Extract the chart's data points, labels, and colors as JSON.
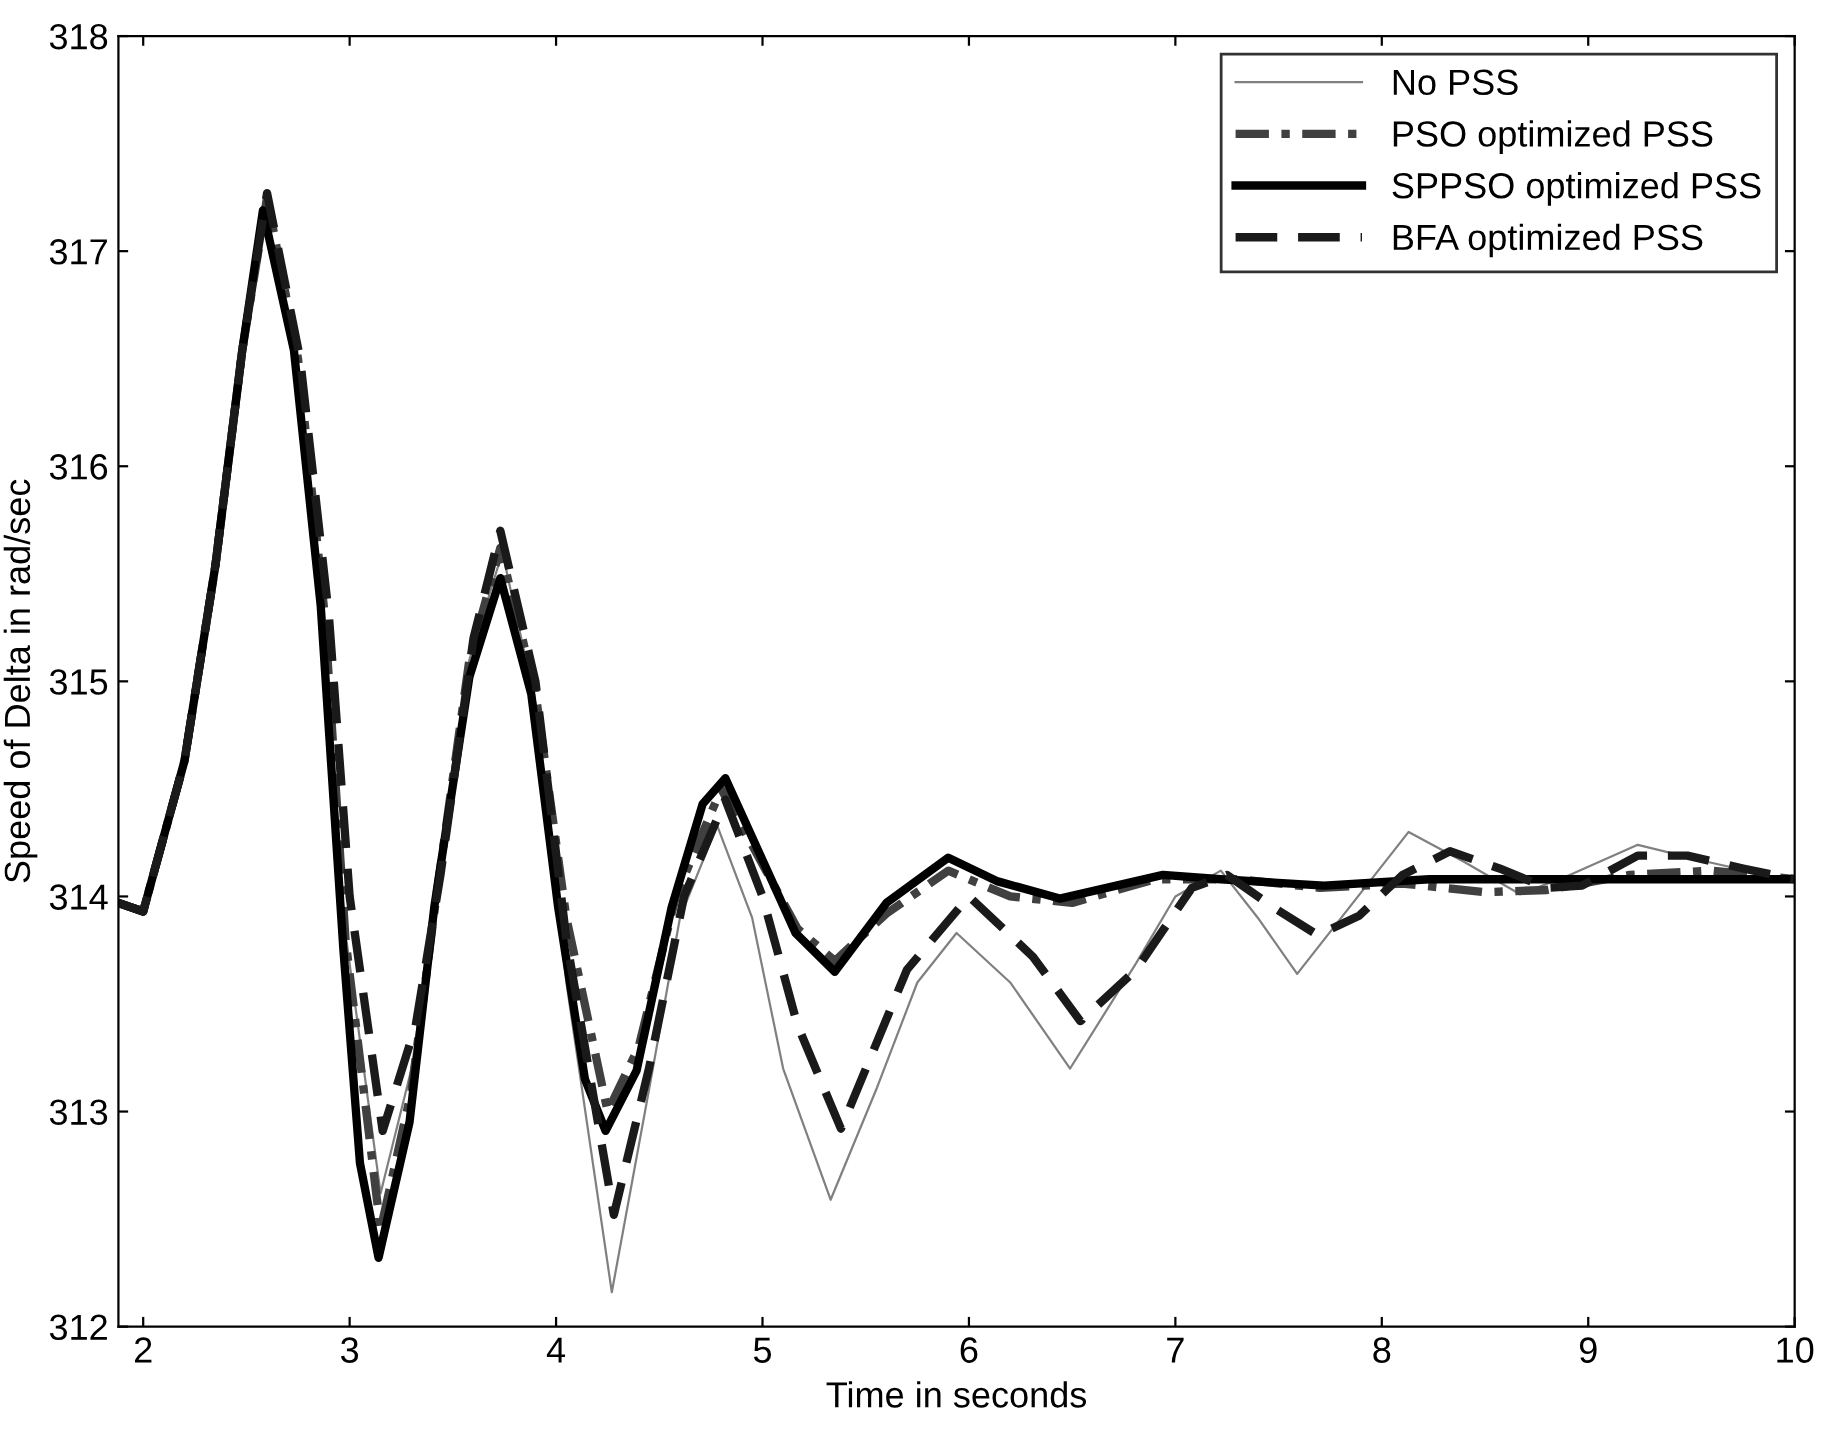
{
  "chart_data": {
    "type": "line",
    "xlabel": "Time in seconds",
    "ylabel": "Speed of Delta in rad/sec",
    "xlim": [
      1.88,
      10
    ],
    "ylim": [
      312,
      318
    ],
    "xticks": [
      2,
      3,
      4,
      5,
      6,
      7,
      8,
      9,
      10
    ],
    "yticks": [
      312,
      313,
      314,
      315,
      316,
      317,
      318
    ],
    "grid": false,
    "legend": "top right",
    "series": [
      {
        "name": "No PSS",
        "color": "#808080",
        "line_style": "solid",
        "x": [
          1.88,
          2.0,
          2.2,
          2.35,
          2.48,
          2.58,
          2.73,
          2.86,
          2.97,
          3.15,
          3.3,
          3.42,
          3.58,
          3.74,
          3.9,
          4.05,
          4.27,
          4.45,
          4.6,
          4.78,
          4.95,
          5.1,
          5.33,
          5.55,
          5.75,
          5.94,
          6.2,
          6.49,
          6.81,
          7.0,
          7.22,
          7.4,
          7.59,
          7.86,
          8.13,
          8.4,
          8.67,
          8.91,
          9.24,
          9.58,
          10
        ],
        "values": [
          313.97,
          313.93,
          314.63,
          315.54,
          316.54,
          317.2,
          316.6,
          315.4,
          313.9,
          312.62,
          313.2,
          314.0,
          315.1,
          315.6,
          314.9,
          313.6,
          312.16,
          313.1,
          313.9,
          314.33,
          313.9,
          313.2,
          312.59,
          313.1,
          313.6,
          313.83,
          313.6,
          313.2,
          313.69,
          314.0,
          314.12,
          313.9,
          313.64,
          313.97,
          314.3,
          314.16,
          314.01,
          314.1,
          314.24,
          314.16,
          314.07
        ]
      },
      {
        "name": "PSO optimized PSS",
        "color": "#404040",
        "line_style": "dashdot",
        "x": [
          1.88,
          2.0,
          2.2,
          2.35,
          2.48,
          2.6,
          2.75,
          2.88,
          2.98,
          3.15,
          3.3,
          3.42,
          3.58,
          3.73,
          3.9,
          4.05,
          4.25,
          4.4,
          4.58,
          4.8,
          5.0,
          5.17,
          5.35,
          5.6,
          5.9,
          6.2,
          6.5,
          6.9,
          7.3,
          7.7,
          8.1,
          8.5,
          8.8,
          9.2,
          9.6,
          10
        ],
        "values": [
          313.97,
          313.93,
          314.63,
          315.54,
          316.54,
          317.25,
          316.5,
          315.3,
          313.8,
          312.45,
          313.1,
          314.0,
          315.1,
          315.62,
          314.95,
          313.9,
          313.0,
          313.3,
          314.0,
          314.5,
          314.15,
          313.85,
          313.7,
          313.92,
          314.12,
          314.0,
          313.97,
          314.08,
          314.08,
          314.04,
          314.06,
          314.02,
          314.03,
          314.1,
          314.12,
          314.08
        ]
      },
      {
        "name": "SPPSO optimized PSS",
        "color": "#000000",
        "line_style": "solid",
        "x": [
          1.88,
          2.0,
          2.2,
          2.35,
          2.48,
          2.58,
          2.73,
          2.86,
          2.97,
          3.05,
          3.14,
          3.29,
          3.41,
          3.58,
          3.73,
          3.88,
          4.01,
          4.14,
          4.24,
          4.39,
          4.56,
          4.71,
          4.82,
          4.99,
          5.16,
          5.35,
          5.6,
          5.9,
          6.14,
          6.44,
          6.94,
          7.22,
          7.72,
          8.23,
          10
        ],
        "values": [
          313.97,
          313.93,
          314.63,
          315.54,
          316.54,
          317.19,
          316.54,
          315.35,
          313.75,
          312.76,
          312.32,
          312.95,
          313.95,
          315.02,
          315.48,
          314.94,
          313.95,
          313.15,
          312.91,
          313.19,
          313.95,
          314.43,
          314.55,
          314.19,
          313.83,
          313.65,
          313.97,
          314.18,
          314.07,
          313.99,
          314.1,
          314.08,
          314.05,
          314.08,
          314.08
        ]
      },
      {
        "name": "BFA optimized PSS",
        "color": "#1a1a1a",
        "line_style": "dashed",
        "x": [
          1.88,
          2.0,
          2.2,
          2.35,
          2.48,
          2.6,
          2.76,
          2.9,
          3.0,
          3.16,
          3.32,
          3.44,
          3.6,
          3.73,
          3.9,
          4.05,
          4.28,
          4.45,
          4.62,
          4.82,
          5.0,
          5.17,
          5.38,
          5.7,
          6.0,
          6.31,
          6.54,
          6.81,
          7.08,
          7.25,
          7.49,
          7.69,
          7.89,
          8.1,
          8.33,
          8.57,
          8.8,
          8.97,
          9.24,
          9.48,
          9.75,
          10
        ],
        "values": [
          313.97,
          313.93,
          314.63,
          315.54,
          316.54,
          317.27,
          316.5,
          315.3,
          314.0,
          312.91,
          313.4,
          314.1,
          315.2,
          315.7,
          315.0,
          313.8,
          312.52,
          313.2,
          314.0,
          314.45,
          314.0,
          313.4,
          312.92,
          313.66,
          314.0,
          313.72,
          313.42,
          313.66,
          314.04,
          314.1,
          313.94,
          313.82,
          313.91,
          314.1,
          314.21,
          314.13,
          314.04,
          314.05,
          314.19,
          314.19,
          314.13,
          314.08
        ]
      }
    ]
  }
}
